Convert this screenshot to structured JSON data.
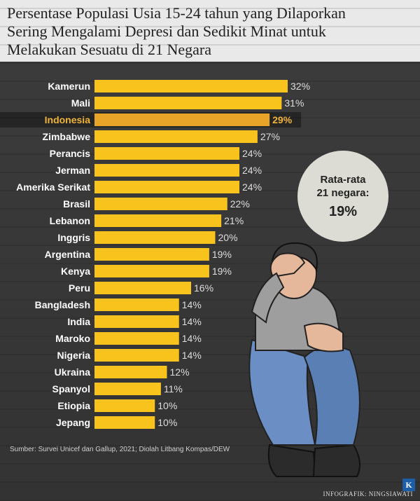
{
  "title": {
    "line1": "Persentase Populasi Usia 15-24 tahun yang Dilaporkan",
    "line2": "Sering Mengalami Depresi dan Sedikit Minat untuk",
    "line3": "Melakukan Sesuatu di 21 Negara"
  },
  "average": {
    "label_line1": "Rata-rata",
    "label_line2": "21 negara:",
    "value": "19%"
  },
  "source": "Sumber: Survei Unicef dan Gallup, 2021; Diolah Litbang Kompas/DEW",
  "credit": "INFOGRAFIK: NINGSIAWATI",
  "logo_letter": "K",
  "colors": {
    "bar": "#f7c31c",
    "highlight_bar": "#e8a428",
    "highlight_text": "#f0b43a",
    "label": "#ffffff",
    "value_label": "#dddddd"
  },
  "chart_data": {
    "type": "bar",
    "orientation": "horizontal",
    "categories": [
      "Kamerun",
      "Mali",
      "Indonesia",
      "Zimbabwe",
      "Perancis",
      "Jerman",
      "Amerika Serikat",
      "Brasil",
      "Lebanon",
      "Inggris",
      "Argentina",
      "Kenya",
      "Peru",
      "Bangladesh",
      "India",
      "Maroko",
      "Nigeria",
      "Ukraina",
      "Spanyol",
      "Etiopia",
      "Jepang"
    ],
    "values": [
      32,
      31,
      29,
      27,
      24,
      24,
      24,
      22,
      21,
      20,
      19,
      19,
      16,
      14,
      14,
      14,
      14,
      12,
      11,
      10,
      10
    ],
    "value_labels": [
      "32%",
      "31%",
      "29%",
      "27%",
      "24%",
      "24%",
      "24%",
      "22%",
      "21%",
      "20%",
      "19%",
      "19%",
      "16%",
      "14%",
      "14%",
      "14%",
      "14%",
      "12%",
      "11%",
      "10%",
      "10%"
    ],
    "highlight": "Indonesia",
    "unit": "%",
    "xlim": [
      0,
      32
    ]
  }
}
